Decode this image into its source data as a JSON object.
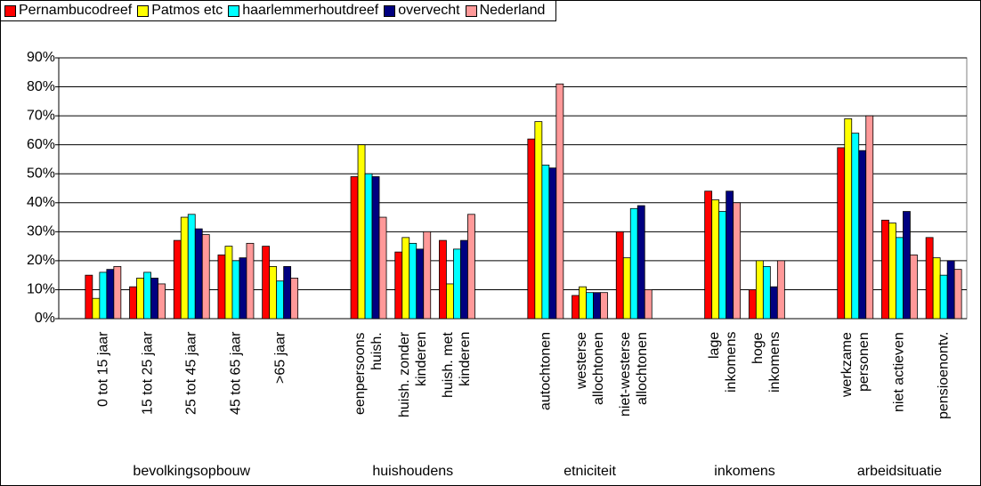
{
  "chart_data": {
    "type": "bar",
    "categories": [
      "0 tot 15 jaar",
      "15 tot 25 jaar",
      "25 tot 45 jaar",
      "45 tot 65 jaar",
      ">65 jaar",
      null,
      "eenpersoons\nhuish.",
      "huish. zonder\nkinderen",
      "huish. met\nkinderen",
      null,
      "autochtonen",
      "westerse\nallochtonen",
      "niet-westerse\nallochtonen",
      null,
      "lage\ninkomens",
      "hoge\ninkomens",
      null,
      "werkzame\npersonen",
      "niet actieven",
      "pensioenontv."
    ],
    "groups": [
      "bevolkingsopbouw",
      "huishoudens",
      "etniciteit",
      "inkomens",
      "arbeidsituatie"
    ],
    "series": [
      {
        "name": "Pernambucodreef",
        "color": "#ff0000",
        "values": [
          15,
          11,
          27,
          22,
          25,
          null,
          49,
          23,
          27,
          null,
          62,
          8,
          30,
          null,
          44,
          10,
          null,
          59,
          34,
          28
        ]
      },
      {
        "name": "Patmos etc",
        "color": "#ffff00",
        "values": [
          7,
          14,
          35,
          25,
          18,
          null,
          60,
          28,
          12,
          null,
          68,
          11,
          21,
          null,
          41,
          20,
          null,
          69,
          33,
          21
        ]
      },
      {
        "name": "haarlemmerhoutdreef",
        "color": "#00ffff",
        "values": [
          16,
          16,
          36,
          20,
          13,
          null,
          50,
          26,
          24,
          null,
          53,
          9,
          38,
          null,
          37,
          18,
          null,
          64,
          28,
          15
        ]
      },
      {
        "name": "overvecht",
        "color": "#000080",
        "values": [
          17,
          14,
          31,
          21,
          18,
          null,
          49,
          24,
          27,
          null,
          52,
          9,
          39,
          null,
          44,
          11,
          null,
          58,
          37,
          20
        ]
      },
      {
        "name": "Nederland",
        "color": "#ff9999",
        "values": [
          18,
          12,
          29,
          26,
          14,
          null,
          35,
          30,
          36,
          null,
          81,
          9,
          10,
          null,
          40,
          20,
          null,
          70,
          22,
          17
        ]
      }
    ],
    "ylim": [
      0,
      90
    ],
    "yticks": [
      {
        "value": 0,
        "label": "0%"
      },
      {
        "value": 10,
        "label": "10%"
      },
      {
        "value": 20,
        "label": "20%"
      },
      {
        "value": 30,
        "label": "30%"
      },
      {
        "value": 40,
        "label": "40%"
      },
      {
        "value": 50,
        "label": "50%"
      },
      {
        "value": 60,
        "label": "60%"
      },
      {
        "value": 70,
        "label": "70%"
      },
      {
        "value": 80,
        "label": "80%"
      },
      {
        "value": 90,
        "label": "90%"
      }
    ],
    "grid": true,
    "legend": "top-left"
  }
}
